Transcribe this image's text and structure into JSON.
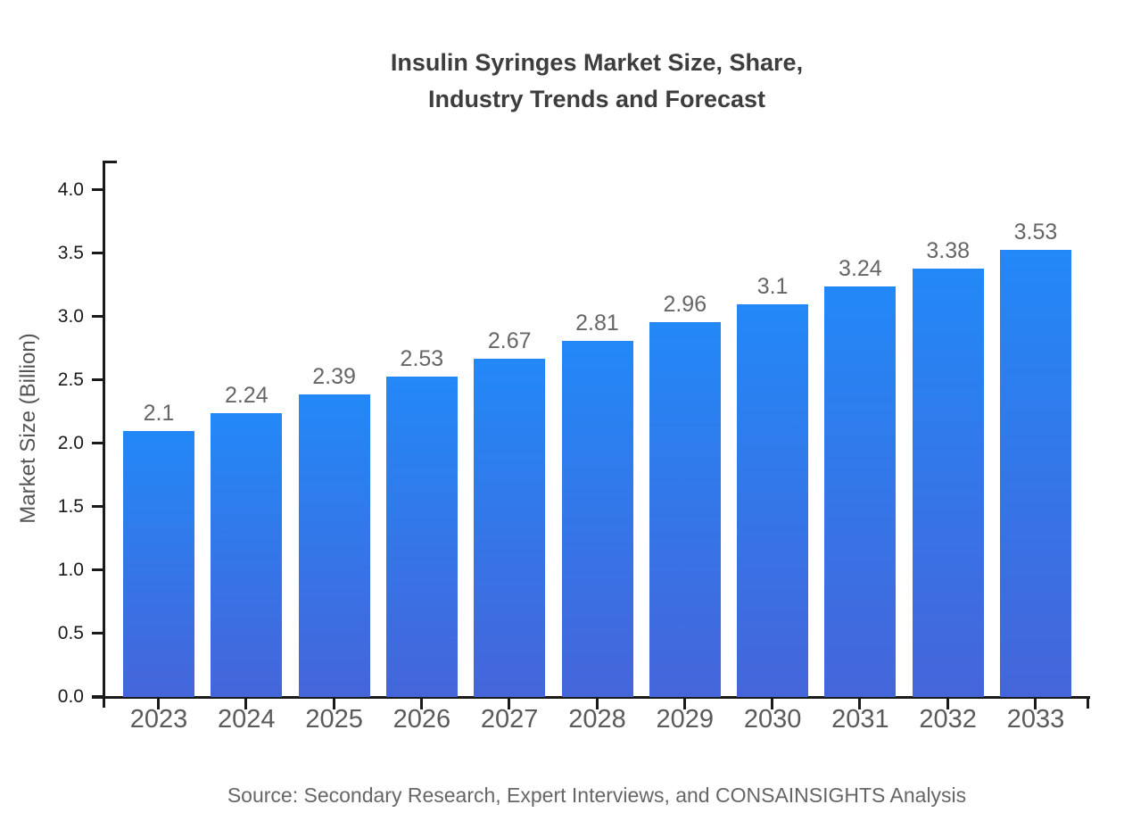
{
  "title": {
    "line1": "Insulin Syringes Market Size, Share,",
    "line2": "Industry Trends and Forecast"
  },
  "y_axis": {
    "label": "Market Size (Billion)",
    "ticks": [
      "0.0",
      "0.5",
      "1.0",
      "1.5",
      "2.0",
      "2.5",
      "3.0",
      "3.5",
      "4.0"
    ]
  },
  "source": "Source: Secondary Research, Expert Interviews, and CONSAINSIGHTS Analysis",
  "chart_data": {
    "type": "bar",
    "title": "Insulin Syringes Market Size, Share, Industry Trends and Forecast",
    "categories": [
      "2023",
      "2024",
      "2025",
      "2026",
      "2027",
      "2028",
      "2029",
      "2030",
      "2031",
      "2032",
      "2033"
    ],
    "values": [
      2.1,
      2.24,
      2.39,
      2.53,
      2.67,
      2.81,
      2.96,
      3.1,
      3.24,
      3.38,
      3.53
    ],
    "value_labels": [
      "2.1",
      "2.24",
      "2.39",
      "2.53",
      "2.67",
      "2.81",
      "2.96",
      "3.1",
      "3.24",
      "3.38",
      "3.53"
    ],
    "xlabel": "",
    "ylabel": "Market Size (Billion)",
    "ylim": [
      0.0,
      4.0
    ],
    "ytick_step": 0.5,
    "grid": false,
    "legend": null,
    "bar_gradient_top": "#2388f7",
    "bar_gradient_bottom": "#4565da",
    "axis_color": "#1a1a1a"
  }
}
